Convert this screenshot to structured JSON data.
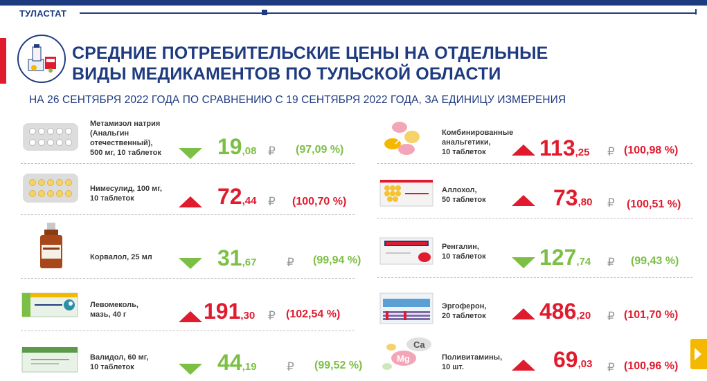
{
  "header": {
    "brand": "ТУЛАСТАТ"
  },
  "title": {
    "line1": "СРЕДНИЕ ПОТРЕБИТЕЛЬСКИЕ ЦЕНЫ НА ОТДЕЛЬНЫЕ",
    "line2": "ВИДЫ МЕДИКАМЕНТОВ ПО ТУЛЬСКОЙ ОБЛАСТИ"
  },
  "subtitle": "НА 26 СЕНТЯБРЯ 2022 ГОДА ПО СРАВНЕНИЮ С 19 СЕНТЯБРЯ 2022 ГОДА, ЗА ЕДИНИЦУ ИЗМЕРЕНИЯ",
  "currency": "₽",
  "colors": {
    "brand": "#1f3b80",
    "up": "#e11b2e",
    "down": "#7cbf45",
    "accent": "#f5b800"
  },
  "left": [
    {
      "name": [
        "Метамизол натрия",
        "(Анальгин",
        "отечественный),",
        "500 мг, 10 таблеток"
      ],
      "price_int": "19",
      "price_dec": ",08",
      "pct": "(97,09 %)",
      "dir": "down",
      "icon": "blister-white-pills-icon"
    },
    {
      "name": [
        "Нимесулид, 100 мг,",
        "10 таблеток"
      ],
      "price_int": "72",
      "price_dec": ",44",
      "pct": "(100,70 %)",
      "dir": "up",
      "icon": "blister-yellow-pills-icon"
    },
    {
      "name": [
        "Корвалол, 25 мл"
      ],
      "price_int": "31",
      "price_dec": ",67",
      "pct": "(99,94 %)",
      "dir": "down",
      "icon": "bottle-icon"
    },
    {
      "name": [
        "Левомеколь,",
        "мазь, 40 г"
      ],
      "price_int": "191",
      "price_dec": ",30",
      "pct": "(102,54 %)",
      "dir": "up",
      "icon": "ointment-box-icon"
    },
    {
      "name": [
        "Валидол, 60 мг,",
        "10 таблеток"
      ],
      "price_int": "44",
      "price_dec": ",19",
      "pct": "(99,52 %)",
      "dir": "down",
      "icon": "validol-box-icon"
    }
  ],
  "right": [
    {
      "name": [
        "Комбинированные",
        "анальгетики,",
        "10 таблеток"
      ],
      "price_int": "113",
      "price_dec": ",25",
      "pct": "(100,98 %)",
      "dir": "up",
      "icon": "colored-tablets-icon"
    },
    {
      "name": [
        "Аллохол,",
        "50 таблеток"
      ],
      "price_int": "73",
      "price_dec": ",80",
      "pct": "(100,51 %)",
      "dir": "up",
      "icon": "allochol-box-icon"
    },
    {
      "name": [
        "Ренгалин,",
        "10 таблеток"
      ],
      "price_int": "127",
      "price_dec": ",74",
      "pct": "(99,43 %)",
      "dir": "down",
      "icon": "rengalin-box-icon"
    },
    {
      "name": [
        "Эргоферон,",
        "20 таблеток"
      ],
      "price_int": "486",
      "price_dec": ",20",
      "pct": "(101,70 %)",
      "dir": "up",
      "icon": "ergoferon-box-icon"
    },
    {
      "name": [
        "Поливитамины,",
        "10 шт."
      ],
      "price_int": "69",
      "price_dec": ",03",
      "pct": "(100,96 %)",
      "dir": "up",
      "icon": "multivitamin-icon"
    }
  ],
  "logo_text": {
    "cap": "Ca",
    "mg": "Mg"
  },
  "nav": {
    "icon": "next-arrow-icon"
  }
}
